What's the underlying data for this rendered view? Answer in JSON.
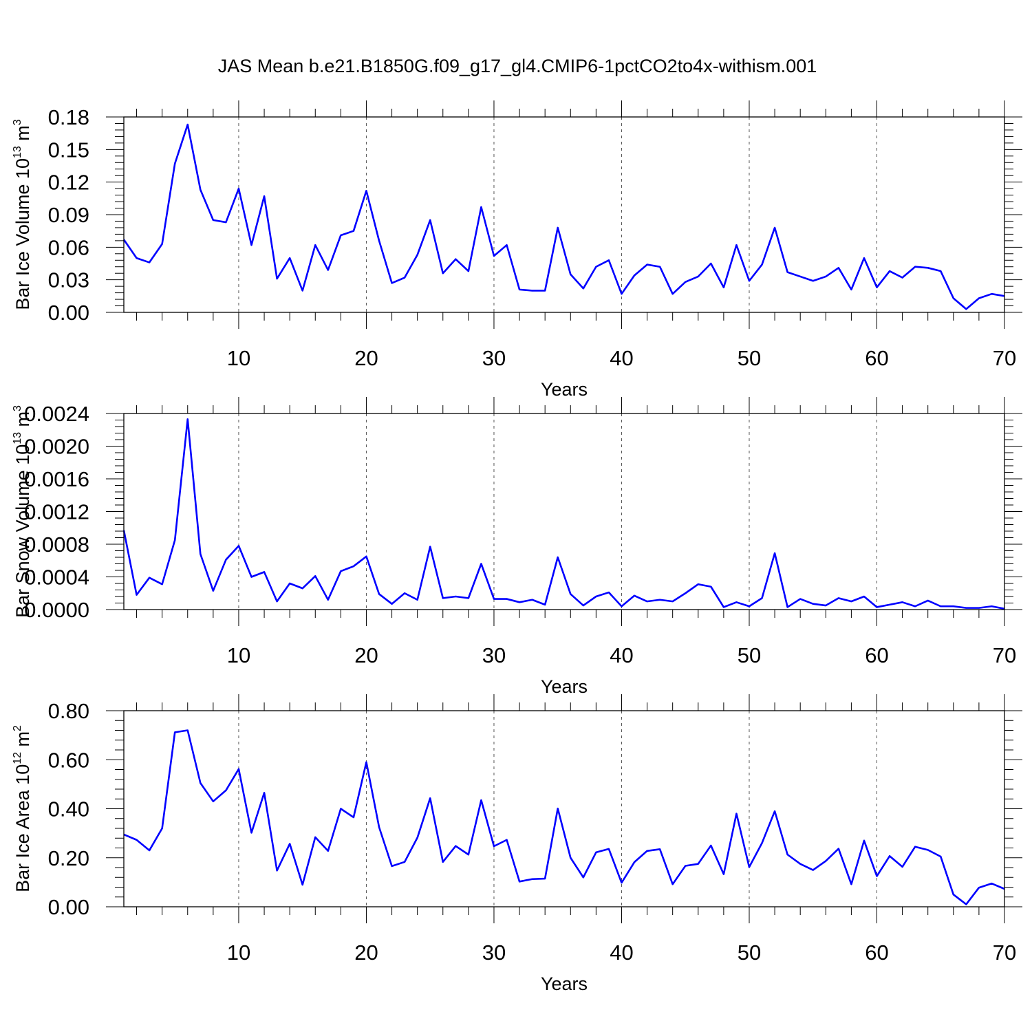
{
  "chart_data": {
    "title": "JAS Mean b.e21.B1850G.f09_g17_gl4.CMIP6-1pctCO2to4x-withism.001",
    "panels": [
      {
        "type": "line",
        "ylabel_main": "Bar Ice Volume 10",
        "ylabel_exp": "13",
        "ylabel_unit": " m",
        "ylabel_unit_exp": "3",
        "xlabel": "Years",
        "xlim": [
          1,
          70
        ],
        "ylim": [
          0,
          0.18
        ],
        "xticks": [
          10,
          20,
          30,
          40,
          50,
          60,
          70
        ],
        "yticks": [
          0,
          0.03,
          0.06,
          0.09,
          0.12,
          0.15,
          0.18
        ],
        "ytick_labels": [
          "0.00",
          "0.03",
          "0.06",
          "0.09",
          "0.12",
          "0.15",
          "0.18"
        ],
        "grid": "vertical dashed at major x ticks",
        "color": "#0000ff",
        "values": [
          0.067,
          0.05,
          0.046,
          0.063,
          0.137,
          0.173,
          0.113,
          0.085,
          0.083,
          0.114,
          0.062,
          0.107,
          0.031,
          0.05,
          0.02,
          0.062,
          0.039,
          0.071,
          0.075,
          0.112,
          0.066,
          0.027,
          0.032,
          0.053,
          0.085,
          0.036,
          0.049,
          0.038,
          0.097,
          0.052,
          0.062,
          0.021,
          0.02,
          0.02,
          0.078,
          0.035,
          0.022,
          0.042,
          0.048,
          0.017,
          0.034,
          0.044,
          0.042,
          0.017,
          0.028,
          0.033,
          0.045,
          0.023,
          0.062,
          0.029,
          0.044,
          0.078,
          0.037,
          0.033,
          0.029,
          0.033,
          0.041,
          0.021,
          0.05,
          0.023,
          0.038,
          0.032,
          0.042,
          0.041,
          0.038,
          0.013,
          0.003,
          0.013,
          0.017,
          0.015
        ]
      },
      {
        "type": "line",
        "ylabel_main": "Bar Snow Volume 10",
        "ylabel_exp": "13",
        "ylabel_unit": " m",
        "ylabel_unit_exp": "3",
        "xlabel": "Years",
        "xlim": [
          1,
          70
        ],
        "ylim": [
          0,
          0.0024
        ],
        "xticks": [
          10,
          20,
          30,
          40,
          50,
          60,
          70
        ],
        "yticks": [
          0,
          0.0004,
          0.0008,
          0.0012,
          0.0016,
          0.002,
          0.0024
        ],
        "ytick_labels": [
          "0.0000",
          "0.0004",
          "0.0008",
          "0.0012",
          "0.0016",
          "0.0020",
          "0.0024"
        ],
        "grid": "vertical dashed at major x ticks",
        "color": "#0000ff",
        "values": [
          0.00097,
          0.00018,
          0.00039,
          0.00031,
          0.00085,
          0.00233,
          0.00068,
          0.00023,
          0.00061,
          0.00078,
          0.0004,
          0.00046,
          0.0001,
          0.00032,
          0.00026,
          0.00041,
          0.00012,
          0.00047,
          0.00053,
          0.00065,
          0.00019,
          7e-05,
          0.0002,
          0.00012,
          0.00077,
          0.00014,
          0.00016,
          0.00014,
          0.00056,
          0.00013,
          0.00013,
          9e-05,
          0.00012,
          6e-05,
          0.00064,
          0.00019,
          5e-05,
          0.00016,
          0.00021,
          4e-05,
          0.00017,
          0.0001,
          0.00012,
          0.0001,
          0.0002,
          0.00031,
          0.00028,
          3e-05,
          9e-05,
          4e-05,
          0.00014,
          0.00069,
          3e-05,
          0.00013,
          7e-05,
          5e-05,
          0.00014,
          0.0001,
          0.00016,
          3e-05,
          6e-05,
          9e-05,
          4e-05,
          0.00011,
          4e-05,
          4e-05,
          2e-05,
          2e-05,
          4e-05,
          1e-05
        ]
      },
      {
        "type": "line",
        "ylabel_main": "Bar Ice Area 10",
        "ylabel_exp": "12",
        "ylabel_unit": " m",
        "ylabel_unit_exp": "2",
        "xlabel": "Years",
        "xlim": [
          1,
          70
        ],
        "ylim": [
          0,
          0.8
        ],
        "xticks": [
          10,
          20,
          30,
          40,
          50,
          60,
          70
        ],
        "yticks": [
          0,
          0.2,
          0.4,
          0.6,
          0.8
        ],
        "ytick_labels": [
          "0.00",
          "0.20",
          "0.40",
          "0.60",
          "0.80"
        ],
        "grid": "vertical dashed at major x ticks",
        "color": "#0000ff",
        "values": [
          0.295,
          0.273,
          0.23,
          0.32,
          0.712,
          0.72,
          0.505,
          0.43,
          0.475,
          0.562,
          0.302,
          0.465,
          0.148,
          0.257,
          0.09,
          0.284,
          0.228,
          0.4,
          0.365,
          0.59,
          0.325,
          0.166,
          0.183,
          0.282,
          0.443,
          0.183,
          0.248,
          0.213,
          0.435,
          0.247,
          0.273,
          0.103,
          0.113,
          0.115,
          0.401,
          0.2,
          0.12,
          0.222,
          0.236,
          0.098,
          0.182,
          0.228,
          0.235,
          0.092,
          0.167,
          0.175,
          0.25,
          0.133,
          0.38,
          0.162,
          0.26,
          0.39,
          0.213,
          0.175,
          0.15,
          0.187,
          0.237,
          0.092,
          0.27,
          0.125,
          0.207,
          0.163,
          0.245,
          0.232,
          0.205,
          0.05,
          0.01,
          0.078,
          0.095,
          0.073
        ]
      }
    ]
  }
}
